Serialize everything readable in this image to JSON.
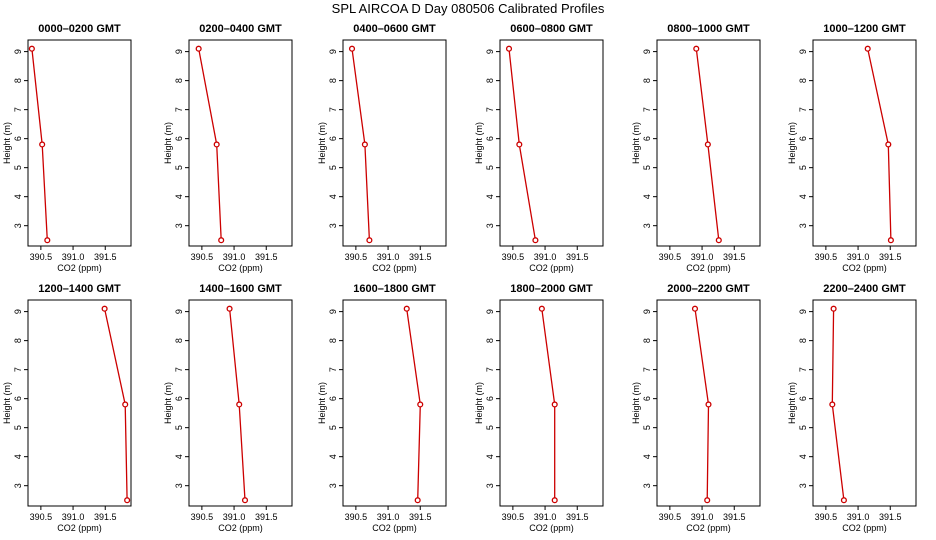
{
  "title": "SPL AIRCOA D  Day 080506  Calibrated Profiles",
  "chart_data": {
    "type": "line",
    "xlabel": "CO2 (ppm)",
    "ylabel": "Height (m)",
    "xlim": [
      390.3,
      391.9
    ],
    "ylim": [
      2.3,
      9.4
    ],
    "xticks": [
      "390.5",
      "391.0",
      "391.5"
    ],
    "yticks": [
      "3",
      "4",
      "5",
      "6",
      "7",
      "8",
      "9"
    ],
    "grid": false,
    "line_color": "#cc0000",
    "panels": [
      {
        "title": "0000–0200 GMT",
        "points": [
          {
            "co2": 390.36,
            "height": 9.1
          },
          {
            "co2": 390.52,
            "height": 5.8
          },
          {
            "co2": 390.6,
            "height": 2.5
          }
        ]
      },
      {
        "title": "0200–0400 GMT",
        "points": [
          {
            "co2": 390.45,
            "height": 9.1
          },
          {
            "co2": 390.73,
            "height": 5.8
          },
          {
            "co2": 390.8,
            "height": 2.5
          }
        ]
      },
      {
        "title": "0400–0600 GMT",
        "points": [
          {
            "co2": 390.44,
            "height": 9.1
          },
          {
            "co2": 390.64,
            "height": 5.8
          },
          {
            "co2": 390.71,
            "height": 2.5
          }
        ]
      },
      {
        "title": "0600–0800 GMT",
        "points": [
          {
            "co2": 390.44,
            "height": 9.1
          },
          {
            "co2": 390.6,
            "height": 5.8
          },
          {
            "co2": 390.85,
            "height": 2.5
          }
        ]
      },
      {
        "title": "0800–1000 GMT",
        "points": [
          {
            "co2": 390.91,
            "height": 9.1
          },
          {
            "co2": 391.09,
            "height": 5.8
          },
          {
            "co2": 391.26,
            "height": 2.5
          }
        ]
      },
      {
        "title": "1000–1200 GMT",
        "points": [
          {
            "co2": 391.15,
            "height": 9.1
          },
          {
            "co2": 391.47,
            "height": 5.8
          },
          {
            "co2": 391.51,
            "height": 2.5
          }
        ]
      },
      {
        "title": "1200–1400 GMT",
        "points": [
          {
            "co2": 391.49,
            "height": 9.1
          },
          {
            "co2": 391.81,
            "height": 5.8
          },
          {
            "co2": 391.84,
            "height": 2.5
          }
        ]
      },
      {
        "title": "1400–1600 GMT",
        "points": [
          {
            "co2": 390.93,
            "height": 9.1
          },
          {
            "co2": 391.08,
            "height": 5.8
          },
          {
            "co2": 391.17,
            "height": 2.5
          }
        ]
      },
      {
        "title": "1600–1800 GMT",
        "points": [
          {
            "co2": 391.29,
            "height": 9.1
          },
          {
            "co2": 391.5,
            "height": 5.8
          },
          {
            "co2": 391.46,
            "height": 2.5
          }
        ]
      },
      {
        "title": "1800–2000 GMT",
        "points": [
          {
            "co2": 390.95,
            "height": 9.1
          },
          {
            "co2": 391.15,
            "height": 5.8
          },
          {
            "co2": 391.15,
            "height": 2.5
          }
        ]
      },
      {
        "title": "2000–2200 GMT",
        "points": [
          {
            "co2": 390.89,
            "height": 9.1
          },
          {
            "co2": 391.1,
            "height": 5.8
          },
          {
            "co2": 391.08,
            "height": 2.5
          }
        ]
      },
      {
        "title": "2200–2400 GMT",
        "points": [
          {
            "co2": 390.62,
            "height": 9.1
          },
          {
            "co2": 390.6,
            "height": 5.8
          },
          {
            "co2": 390.78,
            "height": 2.5
          }
        ]
      }
    ]
  }
}
